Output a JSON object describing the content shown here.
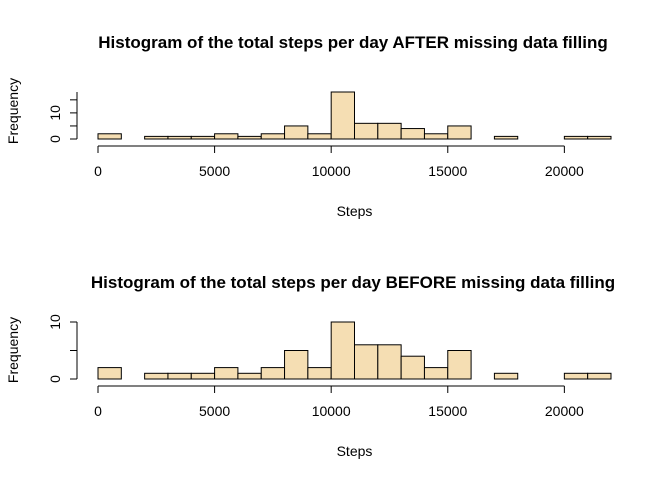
{
  "chart_data": [
    {
      "type": "bar",
      "title_parts": [
        "Histogram of the total steps per day ",
        "AFTER",
        " missing data filling"
      ],
      "xlabel": "Steps",
      "ylabel": "Frequency",
      "x_ticks": [
        "0",
        "5000",
        "10000",
        "15000",
        "20000"
      ],
      "x_tick_values": [
        0,
        5000,
        10000,
        15000,
        20000
      ],
      "y_ticks": [
        "0",
        "10"
      ],
      "y_tick_values": [
        0,
        10
      ],
      "xlim": [
        0,
        22000
      ],
      "ylim": [
        0,
        18
      ],
      "bin_width": 1000,
      "bin_starts": [
        0,
        1000,
        2000,
        3000,
        4000,
        5000,
        6000,
        7000,
        8000,
        9000,
        10000,
        11000,
        12000,
        13000,
        14000,
        15000,
        16000,
        17000,
        18000,
        19000,
        20000,
        21000
      ],
      "values": [
        2,
        0,
        1,
        1,
        1,
        2,
        1,
        2,
        5,
        2,
        18,
        6,
        6,
        4,
        2,
        5,
        0,
        1,
        0,
        0,
        1,
        1
      ],
      "bar_color": "#F5DEB3",
      "grid": false
    },
    {
      "type": "bar",
      "title_parts": [
        "Histogram of the total steps per day ",
        "BEFORE",
        " missing data filling"
      ],
      "xlabel": "Steps",
      "ylabel": "Frequency",
      "x_ticks": [
        "0",
        "5000",
        "10000",
        "15000",
        "20000"
      ],
      "x_tick_values": [
        0,
        5000,
        10000,
        15000,
        20000
      ],
      "y_ticks": [
        "0",
        "10"
      ],
      "y_tick_values": [
        0,
        10
      ],
      "xlim": [
        0,
        22000
      ],
      "ylim": [
        0,
        10
      ],
      "bin_width": 1000,
      "bin_starts": [
        0,
        1000,
        2000,
        3000,
        4000,
        5000,
        6000,
        7000,
        8000,
        9000,
        10000,
        11000,
        12000,
        13000,
        14000,
        15000,
        16000,
        17000,
        18000,
        19000,
        20000,
        21000
      ],
      "values": [
        2,
        0,
        1,
        1,
        1,
        2,
        1,
        2,
        5,
        2,
        10,
        6,
        6,
        4,
        2,
        5,
        0,
        1,
        0,
        0,
        1,
        1
      ],
      "bar_color": "#F5DEB3",
      "grid": false
    }
  ]
}
